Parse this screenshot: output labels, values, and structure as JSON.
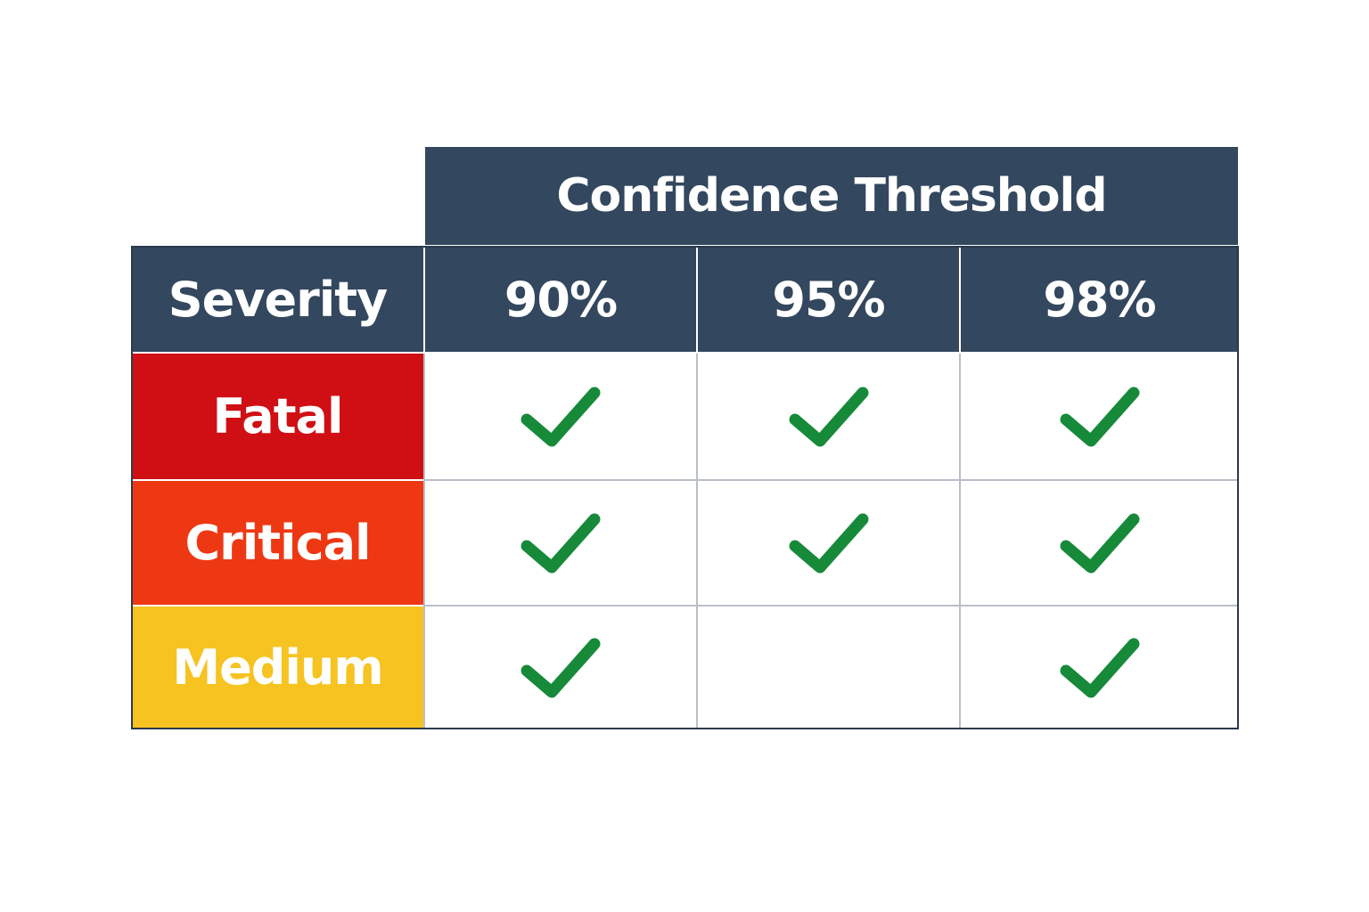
{
  "chart_data": {
    "type": "table",
    "column_group_header": "Confidence Threshold",
    "row_header_label": "Severity",
    "columns": [
      "90%",
      "95%",
      "98%"
    ],
    "rows": [
      {
        "label": "Fatal",
        "color": "#cf0f14",
        "values": [
          true,
          true,
          true
        ]
      },
      {
        "label": "Critical",
        "color": "#ee3814",
        "values": [
          true,
          true,
          true
        ]
      },
      {
        "label": "Medium",
        "color": "#f6c321",
        "values": [
          true,
          false,
          true
        ]
      }
    ],
    "header_color": "#33475e",
    "check_color": "#178a3a",
    "check_icon": "check-icon"
  }
}
